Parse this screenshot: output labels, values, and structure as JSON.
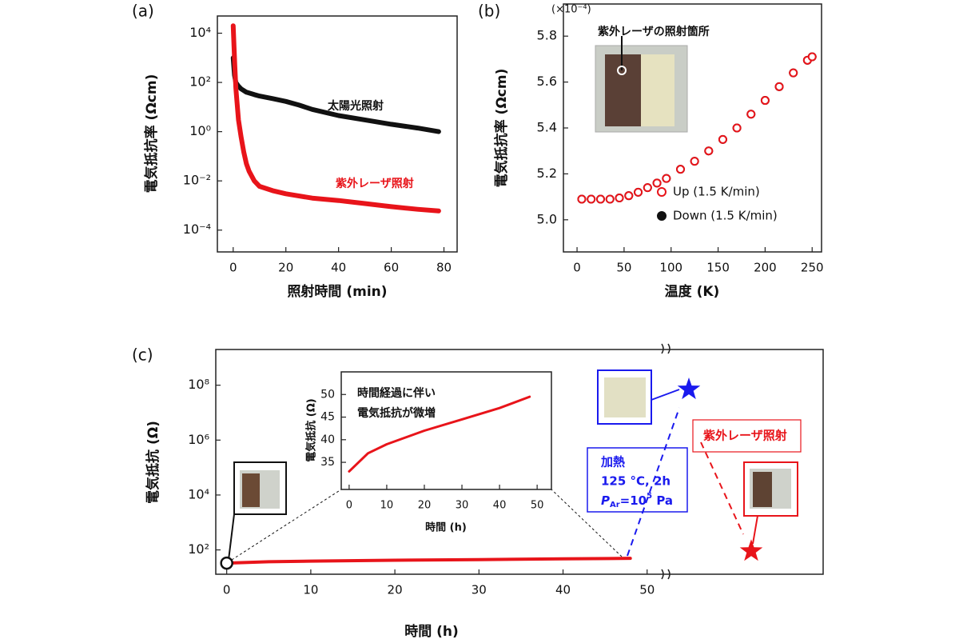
{
  "chart_data": [
    {
      "type": "line",
      "panel_label": "(a)",
      "xlabel": "照射時間 (min)",
      "ylabel": "電気抵抗率 (Ωcm)",
      "log_y": true,
      "xlim": [
        -6,
        85
      ],
      "xticks": [
        0,
        20,
        40,
        60,
        80
      ],
      "ylim": [
        1.3e-05,
        50000
      ],
      "yticks": [
        {
          "value": 0.0001,
          "label": "10⁻⁴"
        },
        {
          "value": 0.01,
          "label": "10⁻²"
        },
        {
          "value": 1,
          "label": "10⁰"
        },
        {
          "value": 100,
          "label": "10²"
        },
        {
          "value": 10000,
          "label": "10⁴"
        }
      ],
      "series": [
        {
          "name": "太陽光照射",
          "color": "#111111",
          "x": [
            0,
            0.5,
            1,
            2,
            3,
            5,
            8,
            10,
            15,
            20,
            25,
            30,
            40,
            50,
            60,
            70,
            78
          ],
          "values": [
            1000,
            200,
            100,
            70,
            55,
            40,
            32,
            28,
            22,
            17,
            12,
            8,
            4.5,
            3,
            2,
            1.4,
            1
          ]
        },
        {
          "name": "紫外レーザ照射",
          "color": "#e8141a",
          "x": [
            0,
            0.3,
            0.6,
            1,
            2,
            3,
            4,
            5,
            6,
            8,
            10,
            15,
            20,
            30,
            40,
            50,
            60,
            70,
            78
          ],
          "values": [
            20000,
            3000,
            500,
            60,
            3,
            0.6,
            0.15,
            0.05,
            0.025,
            0.01,
            0.006,
            0.004,
            0.003,
            0.002,
            0.0016,
            0.0012,
            0.0009,
            0.0007,
            0.0006
          ]
        }
      ],
      "annotations": [
        {
          "text": "太陽光照射",
          "color": "#111111"
        },
        {
          "text": "紫外レーザ照射",
          "color": "#e8141a"
        }
      ]
    },
    {
      "type": "scatter",
      "panel_label": "(b)",
      "xlabel": "温度 (K)",
      "ylabel": "電気抵抗率 (Ωcm)",
      "y_multiplier": "(×10⁻⁴)",
      "xlim": [
        -14.5,
        260
      ],
      "xticks": [
        0,
        50,
        100,
        150,
        200,
        250
      ],
      "ylim": [
        4.86,
        5.94
      ],
      "yticks": [
        {
          "value": 5,
          "label": "5.0"
        },
        5.2,
        5.4,
        5.6,
        5.8
      ],
      "legend": "lower right",
      "series": [
        {
          "name": "Up (1.5 K/min)",
          "color": "#e8141a",
          "marker": "open",
          "x": [
            5,
            15,
            25,
            35,
            45,
            55,
            65,
            75,
            85,
            95,
            110,
            125,
            140,
            155,
            170,
            185,
            200,
            215,
            230,
            245,
            250
          ],
          "values": [
            5.09,
            5.09,
            5.09,
            5.09,
            5.095,
            5.105,
            5.12,
            5.14,
            5.16,
            5.18,
            5.22,
            5.255,
            5.3,
            5.35,
            5.4,
            5.46,
            5.52,
            5.58,
            5.64,
            5.695,
            5.71
          ]
        },
        {
          "name": "Down (1.5 K/min)",
          "color": "#111111",
          "marker": "filled",
          "x": [
            5,
            15,
            25,
            35,
            45,
            55,
            65,
            75,
            85,
            95,
            110,
            125,
            140,
            155,
            170,
            185,
            200,
            215,
            230,
            245,
            250
          ],
          "values": [
            5.09,
            5.09,
            5.09,
            5.09,
            5.095,
            5.105,
            5.12,
            5.14,
            5.16,
            5.18,
            5.22,
            5.255,
            5.3,
            5.35,
            5.4,
            5.46,
            5.52,
            5.58,
            5.64,
            5.695,
            5.71
          ]
        }
      ],
      "annotations": [
        {
          "text": "紫外レーザの照射箇所",
          "color": "#111111"
        }
      ]
    },
    {
      "type": "line",
      "panel_label": "(c)",
      "xlabel": "時間 (h)",
      "ylabel": "電気抵抗 (Ω)",
      "log_y": true,
      "xlim": [
        -1.3,
        52.4
      ],
      "xticks": [
        0,
        10,
        20,
        30,
        40,
        50
      ],
      "ylim": [
        13,
        2000000000
      ],
      "yticks": [
        {
          "value": 100,
          "label": "10²"
        },
        {
          "value": 10000,
          "label": "10⁴"
        },
        {
          "value": 1000000,
          "label": "10⁶"
        },
        {
          "value": 100000000,
          "label": "10⁸"
        }
      ],
      "series": [
        {
          "color": "#e8141a",
          "x": [
            0,
            5,
            10,
            20,
            30,
            40,
            48
          ],
          "values": [
            33,
            37,
            39,
            42,
            44.5,
            47,
            49.5
          ]
        }
      ],
      "post_break": {
        "values": [
          70000000,
          90
        ],
        "colors": [
          "#1a1aee",
          "#e8141a"
        ]
      },
      "annotations": [
        {
          "text": "時間経過に伴い",
          "color": "#111111"
        },
        {
          "text": "電気抵抗が微増",
          "color": "#111111"
        },
        {
          "text": "加熱",
          "color": "#1a1aee"
        },
        {
          "text": "125 °C, 2h",
          "color": "#1a1aee"
        },
        {
          "parts": [
            "P",
            "Ar",
            "=10",
            "5",
            " Pa"
          ],
          "color": "#1a1aee"
        },
        {
          "text": "紫外レーザ照射",
          "color": "#e8141a"
        }
      ]
    },
    {
      "type": "line",
      "xlabel": "時間 (h)",
      "ylabel": "電気抵抗 (Ω)",
      "xlim": [
        -2.1,
        53.8
      ],
      "xticks": [
        0,
        10,
        20,
        30,
        40,
        50
      ],
      "ylim": [
        29,
        55
      ],
      "yticks": [
        35,
        40,
        45,
        50
      ],
      "series": [
        {
          "color": "#e8141a",
          "x": [
            0,
            5,
            10,
            20,
            30,
            40,
            48
          ],
          "values": [
            33,
            37,
            39,
            42,
            44.5,
            47,
            49.5
          ]
        }
      ]
    }
  ]
}
